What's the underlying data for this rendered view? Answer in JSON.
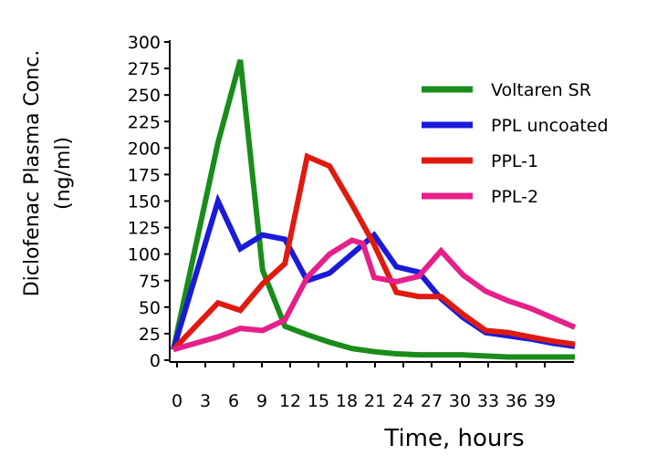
{
  "chart_data": {
    "type": "line",
    "title": "",
    "xlabel": "Time, hours",
    "ylabel": [
      "Diclofenac Plasma Conc.",
      "(ng/ml)"
    ],
    "xlim": [
      0,
      39
    ],
    "ylim": [
      0,
      300
    ],
    "x_ticks": [
      "0",
      "3",
      "6",
      "9",
      "12",
      "15",
      "18",
      "21",
      "24",
      "27",
      "30",
      "33",
      "36",
      "39"
    ],
    "y_ticks": [
      "0",
      "25",
      "50",
      "75",
      "100",
      "125",
      "150",
      "175",
      "200",
      "225",
      "250",
      "275",
      "300"
    ],
    "grid": false,
    "legend_position": "top-right",
    "series": [
      {
        "name": "Voltaren SR",
        "color": "#1a8c1a",
        "x": [
          0,
          4,
          6,
          8,
          10,
          12,
          14,
          16,
          18,
          20,
          22,
          24,
          26,
          28,
          30,
          32,
          34,
          36
        ],
        "y": [
          10,
          205,
          283,
          85,
          32,
          24,
          17,
          11,
          8,
          6,
          5,
          5,
          5,
          4,
          3,
          3,
          3,
          3
        ]
      },
      {
        "name": "PPL uncoated",
        "color": "#1a1ad9",
        "x": [
          0,
          4,
          6,
          8,
          10,
          12,
          14,
          16,
          18,
          20,
          22,
          24,
          26,
          28,
          30,
          32,
          34,
          36
        ],
        "y": [
          10,
          150,
          105,
          118,
          114,
          75,
          82,
          100,
          118,
          88,
          83,
          58,
          40,
          26,
          23,
          20,
          16,
          13
        ]
      },
      {
        "name": "PPL-1",
        "color": "#e01a0f",
        "x": [
          0,
          4,
          6,
          8,
          10,
          12,
          14,
          16,
          18,
          20,
          22,
          24,
          26,
          28,
          30,
          32,
          34,
          36
        ],
        "y": [
          10,
          54,
          47,
          72,
          91,
          192,
          183,
          147,
          109,
          64,
          60,
          60,
          43,
          28,
          26,
          22,
          18,
          15
        ]
      },
      {
        "name": "PPL-2",
        "color": "#e6208a",
        "x": [
          0,
          4,
          6,
          8,
          10,
          12,
          14,
          16,
          17,
          18,
          20,
          22,
          24,
          26,
          28,
          30,
          32,
          34,
          36
        ],
        "y": [
          10,
          22,
          30,
          28,
          38,
          78,
          100,
          113,
          110,
          78,
          74,
          79,
          103,
          80,
          65,
          56,
          49,
          40,
          31
        ]
      }
    ]
  }
}
